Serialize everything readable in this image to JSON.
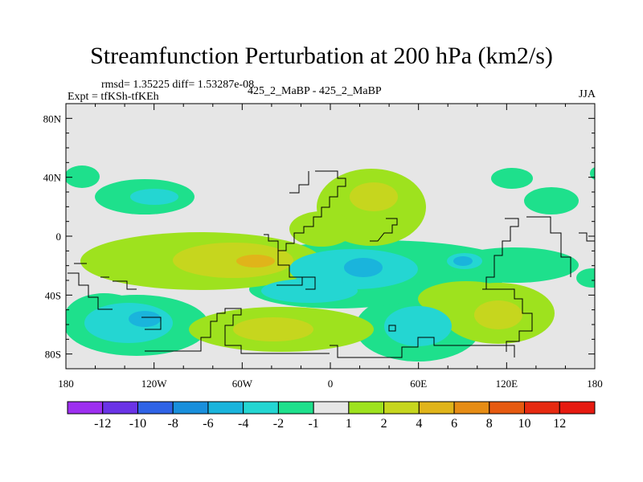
{
  "chart_data": {
    "type": "heatmap",
    "title": "Streamfunction Perturbation at 200 hPa (km2/s)",
    "stats_text": "rmsd= 1.35225 diff= 1.53287e-08",
    "experiment_text": "Expt = tfKSh-tfKEh",
    "center_label": "425_2_MaBP - 425_2_MaBP",
    "season": "JJA",
    "xlim": [
      -180,
      180
    ],
    "ylim": [
      -90,
      90
    ],
    "x_ticks": [
      {
        "value": -180,
        "label": "180"
      },
      {
        "value": -120,
        "label": "120W"
      },
      {
        "value": -60,
        "label": "60W"
      },
      {
        "value": 0,
        "label": "0"
      },
      {
        "value": 60,
        "label": "60E"
      },
      {
        "value": 120,
        "label": "120E"
      },
      {
        "value": 180,
        "label": "180"
      }
    ],
    "y_ticks": [
      {
        "value": 80,
        "label": "80N"
      },
      {
        "value": 40,
        "label": "40N"
      },
      {
        "value": 0,
        "label": "0"
      },
      {
        "value": -40,
        "label": "40S"
      },
      {
        "value": -80,
        "label": "80S"
      }
    ],
    "colorbar": {
      "labels": [
        "-12",
        "-10",
        "-8",
        "-6",
        "-4",
        "-2",
        "-1",
        "1",
        "2",
        "4",
        "6",
        "8",
        "10",
        "12"
      ],
      "colors": [
        "#9d2ff0",
        "#6a33e6",
        "#2f63e6",
        "#198fdc",
        "#1ab4dc",
        "#24d6d2",
        "#1ee08c",
        "#e6e6e6",
        "#9ee21e",
        "#c6d61e",
        "#e0b41a",
        "#e68c14",
        "#e65a10",
        "#e62a10",
        "#e61a10"
      ]
    },
    "contour_fill": {
      "background": "#e6e6e6",
      "levels": [
        "-2",
        "-1",
        "1",
        "2",
        "4"
      ],
      "colors": [
        "#1ab4dc",
        "#24d6d2",
        "#1ee08c",
        "#9ee21e",
        "#c6d61e",
        "#e0b41a"
      ]
    }
  }
}
